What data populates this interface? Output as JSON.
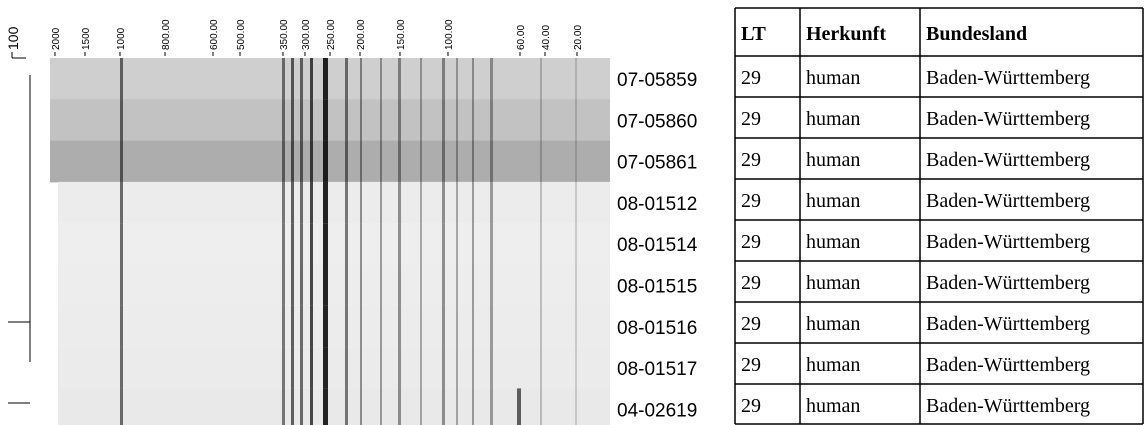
{
  "dendrogram": {
    "scale_label": "100"
  },
  "scale": {
    "labels": [
      "2000",
      "1500",
      "1000",
      "800.00",
      "600.00",
      "500.00",
      "350.00",
      "300.00",
      "250.00",
      "200.00",
      "150.00",
      "100.00",
      "60.00",
      "40.00",
      "20.00"
    ]
  },
  "samples": [
    "07-05859",
    "07-05860",
    "07-05861",
    "08-01512",
    "08-01514",
    "08-01515",
    "08-01516",
    "08-01517",
    "04-02619"
  ],
  "table": {
    "header": [
      "LT",
      "Herkunft",
      "Bundesland"
    ],
    "rows": [
      [
        "29",
        "human",
        "Baden-Württemberg"
      ],
      [
        "29",
        "human",
        "Baden-Württemberg"
      ],
      [
        "29",
        "human",
        "Baden-Württemberg"
      ],
      [
        "29",
        "human",
        "Baden-Württemberg"
      ],
      [
        "29",
        "human",
        "Baden-Württemberg"
      ],
      [
        "29",
        "human",
        "Baden-Württemberg"
      ],
      [
        "29",
        "human",
        "Baden-Württemberg"
      ],
      [
        "29",
        "human",
        "Baden-Württemberg"
      ],
      [
        "29",
        "human",
        "Baden-Württemberg"
      ]
    ]
  }
}
